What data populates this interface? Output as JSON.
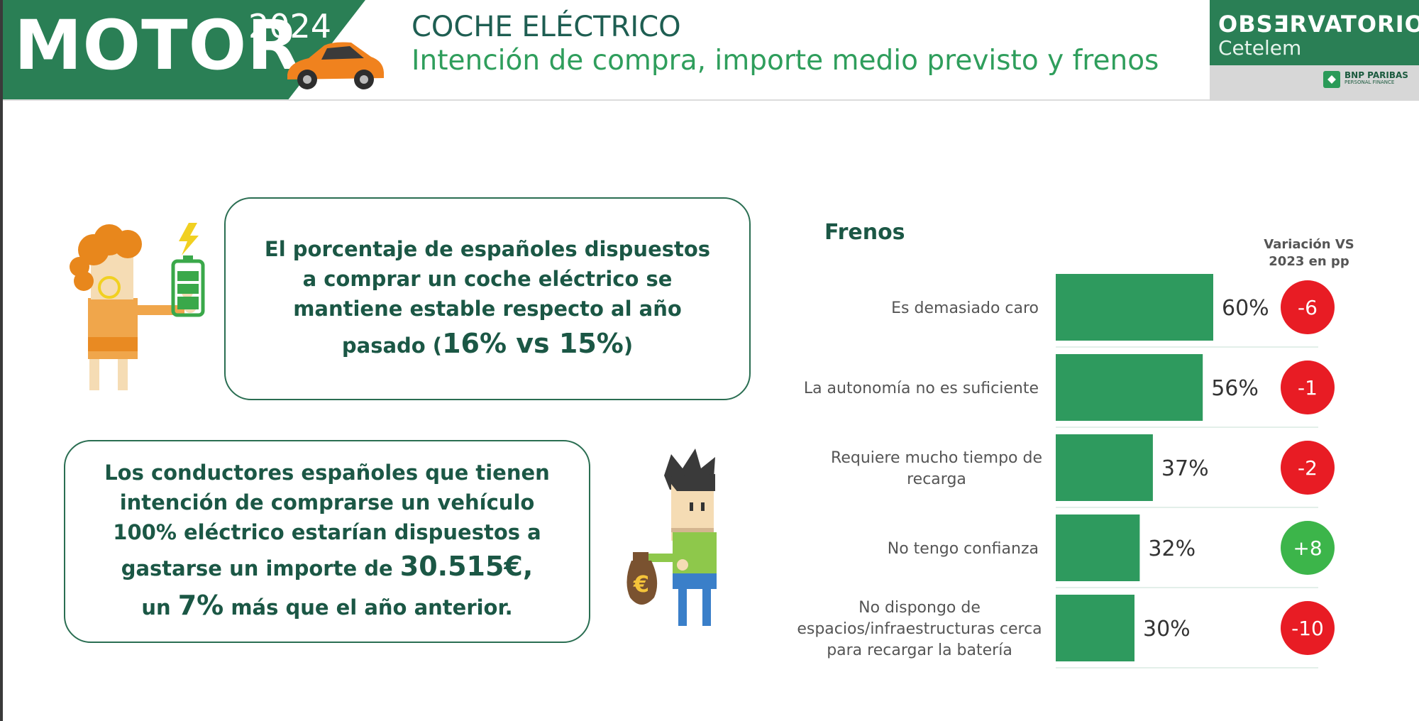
{
  "header": {
    "brand": "MOTOR",
    "year": "2024",
    "title": "COCHE ELÉCTRICO",
    "subtitle": "Intención de compra, importe medio previsto y frenos",
    "observatorio": "OBSƎRVATORIO",
    "observatorio_sub": "Cetelem",
    "bnp_line1": "BNP PARIBAS",
    "bnp_line2": "PERSONAL FINANCE"
  },
  "box1": {
    "text": "El porcentaje de españoles dispuestos a comprar un coche eléctrico se mantiene estable respecto al año pasado (",
    "highlight": "16% vs 15%",
    "tail": ")"
  },
  "box2": {
    "text": "Los conductores españoles que tienen intención de comprarse un vehículo 100% eléctrico estarían dispuestos a gastarse un importe de ",
    "amount": "30.515€,",
    "line2_pre": "un ",
    "pct": "7%",
    "line2_post": " más que el año anterior."
  },
  "colors": {
    "primary_green": "#2a7f55",
    "bar_green": "#2e9a5e",
    "dark_text": "#1b5745",
    "negative": "#e81c24",
    "positive": "#3cb54a"
  },
  "chart_data": {
    "type": "bar",
    "orientation": "horizontal",
    "title": "Frenos",
    "variation_header": "Variación VS 2023 en pp",
    "categories": [
      [
        "Es demasiado caro"
      ],
      [
        "La autonomía no es suficiente"
      ],
      [
        "Requiere mucho tiempo de",
        "recarga"
      ],
      [
        "No tengo confianza"
      ],
      [
        "No dispongo de",
        "espacios/infraestructuras cerca",
        "para recargar la batería"
      ]
    ],
    "values": [
      60,
      56,
      37,
      32,
      30
    ],
    "value_labels": [
      "60%",
      "56%",
      "37%",
      "32%",
      "30%"
    ],
    "variation": [
      -6,
      -1,
      -2,
      8,
      -10
    ],
    "variation_labels": [
      "-6",
      "-1",
      "-2",
      "+8",
      "-10"
    ],
    "xlim": [
      0,
      100
    ]
  }
}
